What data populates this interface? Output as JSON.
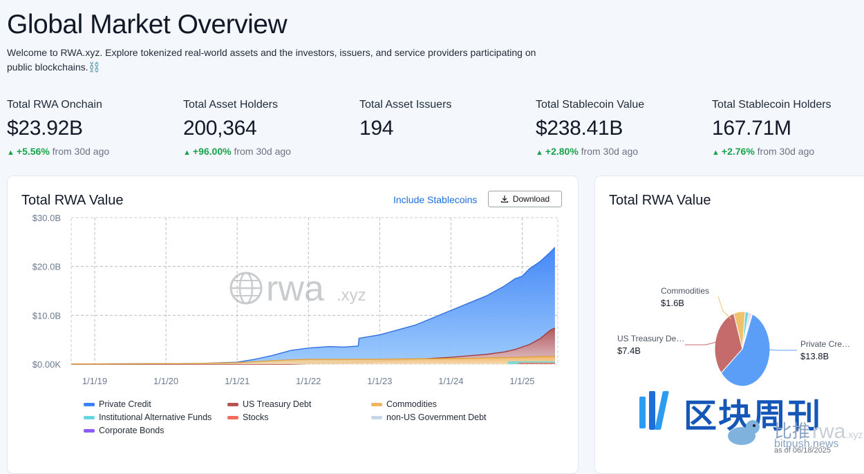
{
  "page": {
    "title": "Global Market Overview",
    "intro": "Welcome to RWA.xyz. Explore tokenized real-world assets and the investors, issuers, and service providers participating on public blockchains.⛓️"
  },
  "stats": [
    {
      "label": "Total RWA Onchain",
      "value": "$23.92B",
      "change": "+5.56%",
      "period": "from 30d ago"
    },
    {
      "label": "Total Asset Holders",
      "value": "200,364",
      "change": "+96.00%",
      "period": "from 30d ago"
    },
    {
      "label": "Total Asset Issuers",
      "value": "194"
    },
    {
      "label": "Total Stablecoin Value",
      "value": "$238.41B",
      "change": "+2.80%",
      "period": "from 30d ago"
    },
    {
      "label": "Total Stablecoin Holders",
      "value": "167.71M",
      "change": "+2.76%",
      "period": "from 30d ago"
    }
  ],
  "chart_card": {
    "title": "Total RWA Value",
    "include_link": "Include Stablecoins",
    "download_label": "Download",
    "watermark_text": "rwa",
    "watermark_suffix": ".xyz"
  },
  "pie_card": {
    "title": "Total RWA Value",
    "date_note": "as of 06/18/2025"
  },
  "overlay": {
    "brand_cn": "区块周刊",
    "brand_cn2": "比推",
    "brand_url": "bitpush.news"
  },
  "colors": {
    "private_credit": "#3b82f6",
    "us_treasury": "#b45454",
    "commodities": "#f0b65f",
    "inst_alt_funds": "#67d8e0",
    "stocks": "#f26d5b",
    "non_us_gov": "#c7d7ea",
    "corporate_bonds": "#8b5cf6",
    "positive": "#16a34a",
    "link": "#1d6fe0"
  },
  "chart_data": [
    {
      "type": "area",
      "title": "Total RWA Value",
      "y_ticks": [
        "$0.00K",
        "$10.0B",
        "$20.0B",
        "$30.0B"
      ],
      "x_ticks": [
        "1/1/19",
        "1/1/20",
        "1/1/21",
        "1/1/22",
        "1/1/23",
        "1/1/24",
        "1/1/25"
      ],
      "ylim": [
        0,
        30
      ],
      "yunit": "B USD",
      "legend": [
        {
          "name": "Private Credit",
          "color": "#3b82f6"
        },
        {
          "name": "US Treasury Debt",
          "color": "#b45454"
        },
        {
          "name": "Commodities",
          "color": "#f0b65f"
        },
        {
          "name": "Institutional Alternative Funds",
          "color": "#67d8e0"
        },
        {
          "name": "Stocks",
          "color": "#f26d5b"
        },
        {
          "name": "non-US Government Debt",
          "color": "#c7d7ea"
        },
        {
          "name": "Corporate Bonds",
          "color": "#8b5cf6"
        }
      ],
      "x": [
        2018.67,
        2019,
        2019.5,
        2020,
        2020.5,
        2021,
        2021.25,
        2021.5,
        2021.75,
        2022,
        2022.1,
        2022.3,
        2022.5,
        2022.7,
        2022.71,
        2023,
        2023.25,
        2023.5,
        2023.75,
        2024,
        2024.25,
        2024.5,
        2024.75,
        2024.9,
        2025,
        2025.1,
        2025.25,
        2025.4,
        2025.46
      ],
      "series": [
        {
          "name": "Total",
          "values": [
            0.05,
            0.05,
            0.08,
            0.1,
            0.15,
            0.4,
            1.0,
            1.8,
            2.8,
            3.3,
            3.4,
            3.6,
            3.5,
            3.7,
            5.3,
            6.0,
            7.0,
            8.0,
            9.5,
            11.0,
            12.5,
            14.0,
            16.0,
            17.5,
            18.0,
            19.5,
            21.0,
            23.0,
            23.92
          ]
        },
        {
          "name": "US Treasury Debt",
          "values": [
            0,
            0,
            0,
            0,
            0,
            0,
            0,
            0,
            0,
            0.1,
            0.1,
            0.1,
            0.2,
            0.3,
            0.3,
            0.6,
            0.8,
            1.0,
            1.2,
            1.4,
            1.7,
            2.0,
            2.5,
            3.0,
            3.5,
            4.0,
            5.2,
            7.0,
            7.4
          ]
        },
        {
          "name": "Commodities",
          "values": [
            0.05,
            0.05,
            0.08,
            0.1,
            0.15,
            0.3,
            0.5,
            0.7,
            0.9,
            1.0,
            1.0,
            1.0,
            1.0,
            1.0,
            1.0,
            1.0,
            1.05,
            1.1,
            1.1,
            1.15,
            1.2,
            1.3,
            1.35,
            1.4,
            1.45,
            1.5,
            1.55,
            1.6,
            1.6
          ]
        }
      ]
    },
    {
      "type": "pie",
      "title": "Total RWA Value",
      "slices": [
        {
          "label": "Private Cre…",
          "value_label": "$13.8B",
          "value": 13.8,
          "color": "#5b9ef8"
        },
        {
          "label": "US Treasury De…",
          "value_label": "$7.4B",
          "value": 7.4,
          "color": "#c66b6b"
        },
        {
          "label": "Commodities",
          "value_label": "$1.6B",
          "value": 1.6,
          "color": "#f0c16e"
        },
        {
          "value": 0.5,
          "color": "#67d8e0"
        },
        {
          "value": 0.25,
          "color": "#c7d7ea"
        },
        {
          "value": 0.15,
          "color": "#f26d5b"
        },
        {
          "value": 0.1,
          "color": "#8b5cf6"
        }
      ]
    }
  ]
}
